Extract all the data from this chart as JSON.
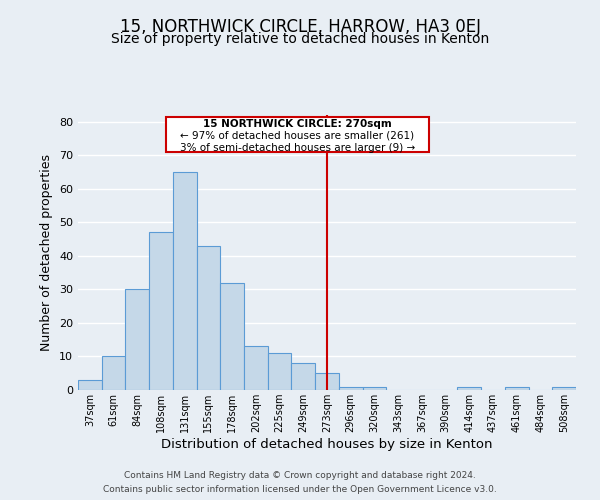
{
  "title": "15, NORTHWICK CIRCLE, HARROW, HA3 0EJ",
  "subtitle": "Size of property relative to detached houses in Kenton",
  "xlabel": "Distribution of detached houses by size in Kenton",
  "ylabel": "Number of detached properties",
  "bin_labels": [
    "37sqm",
    "61sqm",
    "84sqm",
    "108sqm",
    "131sqm",
    "155sqm",
    "178sqm",
    "202sqm",
    "225sqm",
    "249sqm",
    "273sqm",
    "296sqm",
    "320sqm",
    "343sqm",
    "367sqm",
    "390sqm",
    "414sqm",
    "437sqm",
    "461sqm",
    "484sqm",
    "508sqm"
  ],
  "bar_values": [
    3,
    10,
    30,
    47,
    65,
    43,
    32,
    13,
    11,
    8,
    5,
    1,
    1,
    0,
    0,
    0,
    1,
    0,
    1,
    0,
    1
  ],
  "bar_color": "#c5d8e8",
  "bar_edge_color": "#5b9bd5",
  "background_color": "#e8eef4",
  "grid_color": "#ffffff",
  "vline_x": 10,
  "vline_color": "#cc0000",
  "annotation_title": "15 NORTHWICK CIRCLE: 270sqm",
  "annotation_line1": "← 97% of detached houses are smaller (261)",
  "annotation_line2": "3% of semi-detached houses are larger (9) →",
  "annotation_box_color": "#ffffff",
  "annotation_border_color": "#cc0000",
  "ylim": [
    0,
    82
  ],
  "yticks": [
    0,
    10,
    20,
    30,
    40,
    50,
    60,
    70,
    80
  ],
  "footer1": "Contains HM Land Registry data © Crown copyright and database right 2024.",
  "footer2": "Contains public sector information licensed under the Open Government Licence v3.0.",
  "title_fontsize": 12,
  "subtitle_fontsize": 10,
  "xlabel_fontsize": 9.5,
  "ylabel_fontsize": 9
}
